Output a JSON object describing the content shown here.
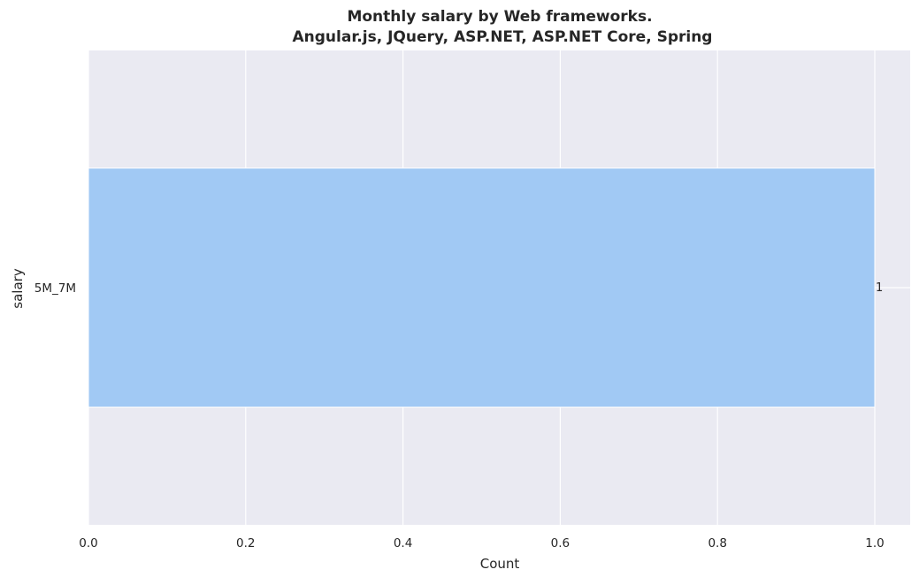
{
  "chart_data": {
    "type": "bar",
    "orientation": "horizontal",
    "title_line1": "Monthly salary by Web frameworks.",
    "title_line2": "Angular.js, JQuery, ASP.NET, ASP.NET Core, Spring",
    "xlabel": "Count",
    "ylabel": "salary",
    "categories": [
      "5M_7M"
    ],
    "values": [
      1
    ],
    "data_labels": [
      "1"
    ],
    "xlim": [
      0,
      1.045
    ],
    "x_ticks": [
      0.0,
      0.2,
      0.4,
      0.6,
      0.8,
      1.0
    ],
    "x_tick_labels": [
      "0.0",
      "0.2",
      "0.4",
      "0.6",
      "0.8",
      "1.0"
    ],
    "grid": true,
    "colors": {
      "background": "#eaeaf2",
      "grid": "#ffffff",
      "bar": "#a1c9f4"
    }
  }
}
